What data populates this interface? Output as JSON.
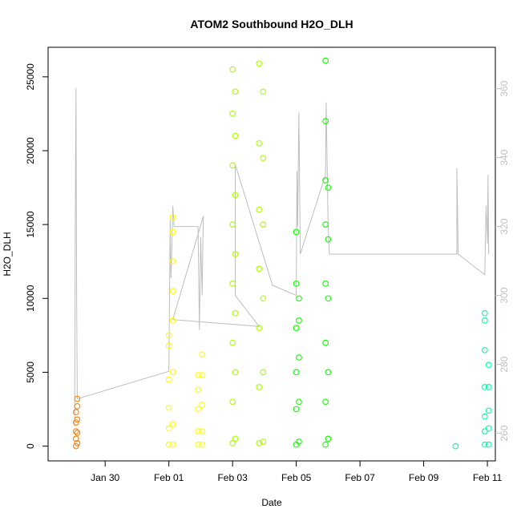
{
  "chart_data": {
    "type": "scatter",
    "title": "ATOM2 Southbound H2O_DLH",
    "xlabel": "Date",
    "ylabel": "H2O_DLH",
    "xlim": [
      "2017-01-28T05:00",
      "2017-02-11T06:00"
    ],
    "ylim": [
      -1000,
      27000
    ],
    "y2lim": [
      252,
      372
    ],
    "x_ticks": [
      {
        "date": "2017-01-30T00:00",
        "label": "Jan 30"
      },
      {
        "date": "2017-02-01T00:00",
        "label": "Feb 01"
      },
      {
        "date": "2017-02-03T00:00",
        "label": "Feb 03"
      },
      {
        "date": "2017-02-05T00:00",
        "label": "Feb 05"
      },
      {
        "date": "2017-02-07T00:00",
        "label": "Feb 07"
      },
      {
        "date": "2017-02-09T00:00",
        "label": "Feb 09"
      },
      {
        "date": "2017-02-11T00:00",
        "label": "Feb 11"
      }
    ],
    "y_ticks": [
      0,
      5000,
      10000,
      15000,
      20000,
      25000
    ],
    "y2_ticks": [
      260,
      280,
      300,
      320,
      340,
      360
    ],
    "grid": false,
    "legend": "none",
    "marker": "open-circle",
    "series": [
      {
        "color": "#FF7F00",
        "points": [
          [
            "2017-01-29T02:00",
            0
          ],
          [
            "2017-01-29T02:00",
            500
          ],
          [
            "2017-01-29T02:00",
            1000
          ],
          [
            "2017-01-29T02:00",
            1600
          ],
          [
            "2017-01-29T02:00",
            2300
          ],
          [
            "2017-01-29T03:00",
            200
          ],
          [
            "2017-01-29T03:00",
            900
          ],
          [
            "2017-01-29T03:00",
            1800
          ],
          [
            "2017-01-29T03:00",
            2700
          ],
          [
            "2017-01-29T03:00",
            3200
          ]
        ]
      },
      {
        "color": "#FFFF00",
        "points": [
          [
            "2017-02-01T00:00",
            100
          ],
          [
            "2017-02-01T00:00",
            1200
          ],
          [
            "2017-02-01T00:00",
            2600
          ],
          [
            "2017-02-01T00:00",
            4500
          ],
          [
            "2017-02-01T00:00",
            6800
          ],
          [
            "2017-02-01T00:00",
            7500
          ],
          [
            "2017-02-01T03:00",
            100
          ],
          [
            "2017-02-01T03:00",
            1500
          ],
          [
            "2017-02-01T03:00",
            5000
          ],
          [
            "2017-02-01T03:00",
            8500
          ],
          [
            "2017-02-01T03:00",
            10500
          ],
          [
            "2017-02-01T03:00",
            12500
          ],
          [
            "2017-02-01T03:00",
            14500
          ],
          [
            "2017-02-01T03:00",
            15500
          ],
          [
            "2017-02-01T22:00",
            100
          ],
          [
            "2017-02-01T22:00",
            1000
          ],
          [
            "2017-02-01T22:00",
            2500
          ],
          [
            "2017-02-01T22:00",
            3800
          ],
          [
            "2017-02-01T22:00",
            4800
          ],
          [
            "2017-02-02T01:00",
            100
          ],
          [
            "2017-02-02T01:00",
            1000
          ],
          [
            "2017-02-02T01:00",
            2800
          ],
          [
            "2017-02-02T01:00",
            4800
          ],
          [
            "2017-02-02T01:00",
            6200
          ]
        ]
      },
      {
        "color": "#AAFF00",
        "points": [
          [
            "2017-02-03T00:00",
            200
          ],
          [
            "2017-02-03T00:00",
            3000
          ],
          [
            "2017-02-03T00:00",
            7000
          ],
          [
            "2017-02-03T00:00",
            11000
          ],
          [
            "2017-02-03T00:00",
            15000
          ],
          [
            "2017-02-03T00:00",
            19000
          ],
          [
            "2017-02-03T00:00",
            22500
          ],
          [
            "2017-02-03T00:00",
            25500
          ],
          [
            "2017-02-03T02:00",
            500
          ],
          [
            "2017-02-03T02:00",
            5000
          ],
          [
            "2017-02-03T02:00",
            9000
          ],
          [
            "2017-02-03T02:00",
            13000
          ],
          [
            "2017-02-03T02:00",
            17000
          ],
          [
            "2017-02-03T02:00",
            21000
          ],
          [
            "2017-02-03T02:00",
            24000
          ],
          [
            "2017-02-03T20:00",
            200
          ],
          [
            "2017-02-03T20:00",
            4000
          ],
          [
            "2017-02-03T20:00",
            8000
          ],
          [
            "2017-02-03T20:00",
            12000
          ],
          [
            "2017-02-03T20:00",
            16000
          ],
          [
            "2017-02-03T20:00",
            20500
          ],
          [
            "2017-02-03T20:00",
            25900
          ],
          [
            "2017-02-03T23:00",
            300
          ],
          [
            "2017-02-03T23:00",
            5000
          ],
          [
            "2017-02-03T23:00",
            10000
          ],
          [
            "2017-02-03T23:00",
            15000
          ],
          [
            "2017-02-03T23:00",
            19500
          ],
          [
            "2017-02-03T23:00",
            24000
          ]
        ]
      },
      {
        "color": "#11FF00",
        "points": [
          [
            "2017-02-05T00:00",
            100
          ],
          [
            "2017-02-05T00:00",
            2500
          ],
          [
            "2017-02-05T00:00",
            5000
          ],
          [
            "2017-02-05T00:00",
            8000
          ],
          [
            "2017-02-05T00:00",
            11000
          ],
          [
            "2017-02-05T00:00",
            14500
          ],
          [
            "2017-02-05T02:00",
            300
          ],
          [
            "2017-02-05T02:00",
            3000
          ],
          [
            "2017-02-05T02:00",
            6000
          ],
          [
            "2017-02-05T02:00",
            8500
          ],
          [
            "2017-02-05T02:00",
            10000
          ],
          [
            "2017-02-05T22:00",
            100
          ],
          [
            "2017-02-05T22:00",
            3000
          ],
          [
            "2017-02-05T22:00",
            7000
          ],
          [
            "2017-02-05T22:00",
            11000
          ],
          [
            "2017-02-05T22:00",
            15000
          ],
          [
            "2017-02-05T22:00",
            18000
          ],
          [
            "2017-02-05T22:00",
            22000
          ],
          [
            "2017-02-05T22:00",
            26100
          ],
          [
            "2017-02-06T00:00",
            500
          ],
          [
            "2017-02-06T00:00",
            5000
          ],
          [
            "2017-02-06T00:00",
            10000
          ],
          [
            "2017-02-06T00:00",
            14000
          ],
          [
            "2017-02-06T00:00",
            17500
          ]
        ]
      },
      {
        "color": "#00FFAA",
        "points": [
          [
            "2017-02-10T00:00",
            0
          ],
          [
            "2017-02-10T22:00",
            100
          ],
          [
            "2017-02-10T22:00",
            1000
          ],
          [
            "2017-02-10T22:00",
            2000
          ],
          [
            "2017-02-10T22:00",
            4000
          ],
          [
            "2017-02-10T22:00",
            6500
          ],
          [
            "2017-02-10T22:00",
            8500
          ],
          [
            "2017-02-10T22:00",
            9000
          ],
          [
            "2017-02-11T01:00",
            100
          ],
          [
            "2017-02-11T01:00",
            1200
          ],
          [
            "2017-02-11T01:00",
            2400
          ],
          [
            "2017-02-11T01:00",
            4000
          ],
          [
            "2017-02-11T01:00",
            5500
          ]
        ]
      }
    ],
    "secondary_line": {
      "axis": "right",
      "color": "#BEBEBE",
      "points": [
        [
          "2017-01-29T01:00",
          262
        ],
        [
          "2017-01-29T01:30",
          320
        ],
        [
          "2017-01-29T02:00",
          360
        ],
        [
          "2017-01-29T02:30",
          300
        ],
        [
          "2017-01-29T03:00",
          270
        ],
        [
          "2017-02-01T00:00",
          278
        ],
        [
          "2017-02-01T00:30",
          300
        ],
        [
          "2017-02-01T01:00",
          322
        ],
        [
          "2017-02-01T01:30",
          305
        ],
        [
          "2017-02-01T02:00",
          310
        ],
        [
          "2017-02-01T03:00",
          326
        ],
        [
          "2017-02-01T04:00",
          320
        ],
        [
          "2017-02-01T22:00",
          320
        ],
        [
          "2017-02-01T23:00",
          290
        ],
        [
          "2017-02-02T00:00",
          317
        ],
        [
          "2017-02-02T01:00",
          300
        ],
        [
          "2017-02-02T02:00",
          323
        ],
        [
          "2017-02-01T03:00",
          293
        ],
        [
          "2017-02-03T20:00",
          291
        ],
        [
          "2017-02-03T02:00",
          300
        ],
        [
          "2017-02-03T02:00",
          338
        ],
        [
          "2017-02-04T06:00",
          303
        ],
        [
          "2017-02-05T00:00",
          300
        ],
        [
          "2017-02-05T00:30",
          336
        ],
        [
          "2017-02-05T01:00",
          320
        ],
        [
          "2017-02-05T02:00",
          353
        ],
        [
          "2017-02-05T03:00",
          312
        ],
        [
          "2017-02-05T22:00",
          335
        ],
        [
          "2017-02-05T22:30",
          356
        ],
        [
          "2017-02-06T00:00",
          320
        ],
        [
          "2017-02-06T01:00",
          312
        ],
        [
          "2017-02-10T01:00",
          312
        ],
        [
          "2017-02-10T01:00",
          337
        ],
        [
          "2017-02-10T02:00",
          312
        ],
        [
          "2017-02-10T22:00",
          306
        ],
        [
          "2017-02-10T23:00",
          326
        ],
        [
          "2017-02-11T00:00",
          315
        ],
        [
          "2017-02-11T00:30",
          335
        ],
        [
          "2017-02-11T01:00",
          312
        ]
      ]
    }
  }
}
